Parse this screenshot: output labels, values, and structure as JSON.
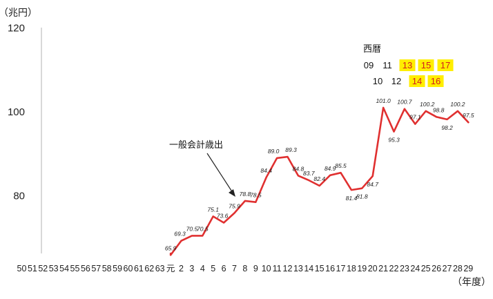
{
  "chart_data": {
    "type": "line",
    "ylabel": "（兆円）",
    "xlabel": "（年度）",
    "yticks": [
      80,
      100,
      120
    ],
    "ylim": [
      66,
      120
    ],
    "grid": false,
    "categories": [
      "50",
      "51",
      "52",
      "53",
      "54",
      "55",
      "56",
      "57",
      "58",
      "59",
      "60",
      "61",
      "62",
      "63",
      "元",
      "2",
      "3",
      "4",
      "5",
      "6",
      "7",
      "8",
      "9",
      "10",
      "11",
      "12",
      "13",
      "14",
      "15",
      "16",
      "17",
      "18",
      "19",
      "20",
      "21",
      "22",
      "23",
      "24",
      "25",
      "26",
      "27",
      "28",
      "29"
    ],
    "series": [
      {
        "values": [
          null,
          null,
          null,
          null,
          null,
          null,
          null,
          null,
          null,
          null,
          null,
          null,
          null,
          null,
          65.9,
          69.3,
          70.5,
          70.5,
          75.1,
          73.6,
          75.9,
          78.8,
          78.5,
          84.4,
          89.0,
          89.3,
          84.8,
          83.7,
          82.4,
          84.9,
          85.5,
          81.4,
          81.8,
          84.7,
          101.0,
          95.3,
          100.7,
          97.1,
          100.2,
          98.8,
          98.2,
          100.2,
          97.5
        ],
        "labels": [
          "",
          "",
          "",
          "",
          "",
          "",
          "",
          "",
          "",
          "",
          "",
          "",
          "",
          "",
          "65.9",
          "69.3",
          "70.5",
          "70.5",
          "75.1",
          "73.6",
          "75.9",
          "78.8",
          "78.5",
          "84.4",
          "89.0",
          "89.3",
          "84.8",
          "83.7",
          "82.4",
          "84.9",
          "85.5",
          "81.4",
          "81.8",
          "84.7",
          "101.0",
          "95.3",
          "100.7",
          "97.1",
          "100.2",
          "98.8",
          "98.2",
          "100.2",
          "97.5"
        ],
        "color": "#e03030"
      }
    ],
    "annotation": {
      "text": "一般会計歳出"
    },
    "seireki": {
      "title": "西暦",
      "row1": [
        {
          "text": "09",
          "highlight": false
        },
        {
          "text": "11",
          "highlight": false
        },
        {
          "text": "13",
          "highlight": true
        },
        {
          "text": "15",
          "highlight": true
        },
        {
          "text": "17",
          "highlight": true
        }
      ],
      "row2": [
        {
          "text": "10",
          "highlight": false
        },
        {
          "text": "12",
          "highlight": false
        },
        {
          "text": "14",
          "highlight": true
        },
        {
          "text": "16",
          "highlight": true
        }
      ],
      "highlight_color": "#ffee00"
    }
  }
}
